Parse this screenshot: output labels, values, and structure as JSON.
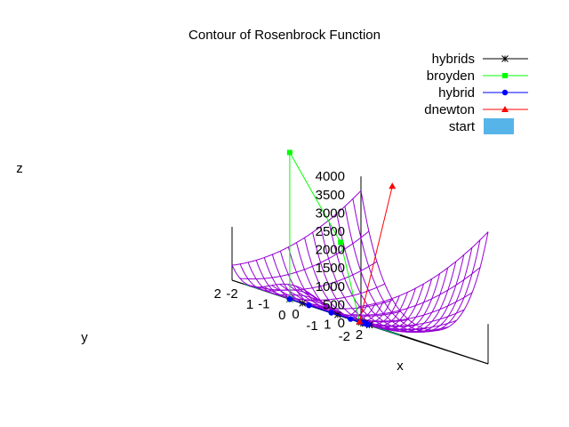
{
  "chart_data": {
    "type": "surface3d",
    "title": "Contour of Rosenbrock Function",
    "xlabel": "x",
    "ylabel": "y",
    "zlabel": "z",
    "xlim": [
      -2,
      2
    ],
    "ylim": [
      -2,
      2
    ],
    "zlim": [
      0,
      4000
    ],
    "x_ticks": [
      "-2",
      "-1",
      "0",
      "1",
      "2"
    ],
    "y_ticks": [
      "-2",
      "-1",
      "0",
      "1",
      "2"
    ],
    "z_ticks": [
      "4000",
      "3500",
      "3000",
      "2500",
      "2000",
      "1500",
      "1000",
      "500",
      "0"
    ],
    "surface": {
      "function": "(1-x)^2 + 100*(y-x^2)^2",
      "grid_lines": 17,
      "color": "#9400d3"
    },
    "base_contours": {
      "color": "#009e73",
      "levels": [
        100
      ]
    },
    "legend": {
      "placement": "top-right",
      "entries": [
        {
          "name": "hybrids",
          "color": "#000000",
          "marker": "star"
        },
        {
          "name": "broyden",
          "color": "#00ff00",
          "marker": "square"
        },
        {
          "name": "hybrid",
          "color": "#0000ff",
          "marker": "circle"
        },
        {
          "name": "dnewton",
          "color": "#ff0000",
          "marker": "triangle"
        },
        {
          "name": "start",
          "color": "#56b4e9",
          "marker": "box"
        }
      ]
    },
    "series": [
      {
        "name": "hybrids",
        "points": [
          [
            -1.2,
            1.0,
            0
          ],
          [
            -0.95,
            0.85,
            0
          ],
          [
            -0.5,
            0.2,
            0
          ],
          [
            0.0,
            -0.1,
            0
          ],
          [
            0.5,
            0.2,
            0
          ],
          [
            0.8,
            0.64,
            0
          ],
          [
            0.95,
            0.9,
            0
          ],
          [
            1.0,
            1.0,
            0
          ]
        ]
      },
      {
        "name": "broyden",
        "points": [
          [
            -1.2,
            1.0,
            0
          ],
          [
            -1.2,
            1.0,
            4000
          ],
          [
            0.2,
            0.8,
            2000
          ],
          [
            1.0,
            1.0,
            0
          ]
        ]
      },
      {
        "name": "hybrid",
        "points": [
          [
            -1.2,
            1.0,
            0
          ],
          [
            -0.9,
            0.7,
            0
          ],
          [
            -0.6,
            0.3,
            0
          ],
          [
            -0.3,
            0.0,
            0
          ],
          [
            0.0,
            -0.2,
            0
          ],
          [
            0.2,
            0.0,
            0
          ],
          [
            0.4,
            0.15,
            0
          ],
          [
            0.6,
            0.35,
            0
          ],
          [
            0.75,
            0.55,
            0
          ],
          [
            0.85,
            0.72,
            0
          ],
          [
            0.92,
            0.84,
            0
          ],
          [
            0.97,
            0.94,
            0
          ],
          [
            1.0,
            1.0,
            0
          ]
        ]
      },
      {
        "name": "dnewton",
        "points": [
          [
            1.0,
            1.0,
            0
          ],
          [
            0.0,
            -1.0,
            4000
          ]
        ]
      }
    ]
  }
}
